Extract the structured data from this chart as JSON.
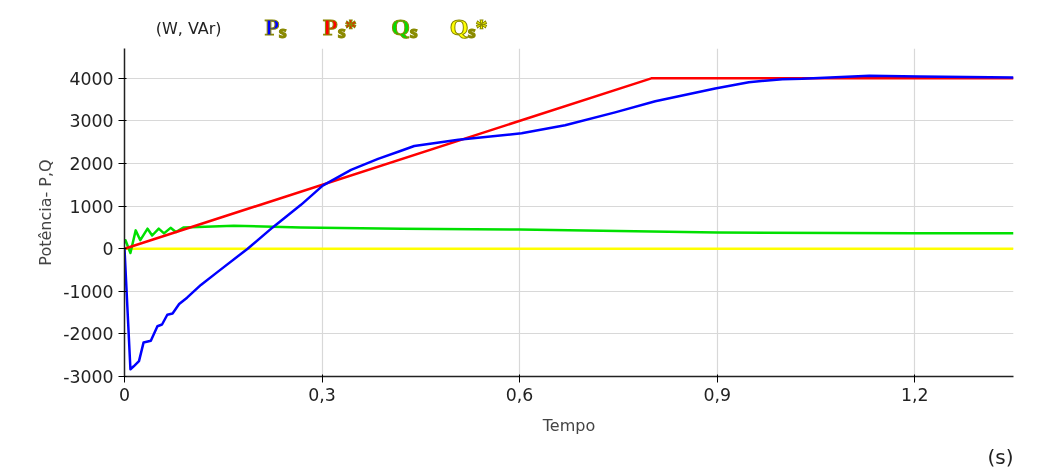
{
  "chart_data": {
    "type": "line",
    "xlabel": "Tempo",
    "ylabel": "Potência- P,Q",
    "annotations": [
      "(W, VAr)",
      "(s)"
    ],
    "xlim": [
      0,
      1.35
    ],
    "ylim": [
      -3000,
      4700
    ],
    "xticks": [
      {
        "value": 0,
        "label": "0"
      },
      {
        "value": 0.3,
        "label": "0,3"
      },
      {
        "value": 0.6,
        "label": "0,6"
      },
      {
        "value": 0.9,
        "label": "0,9"
      },
      {
        "value": 1.2,
        "label": "1,2"
      }
    ],
    "yticks": [
      -3000,
      -2000,
      -1000,
      0,
      1000,
      2000,
      3000,
      4000
    ],
    "grid": true,
    "marker": "none",
    "line_style": "solid",
    "series": [
      {
        "name": "Pₛ",
        "color": "#0000ff",
        "x": [
          0,
          0.009,
          0.014,
          0.022,
          0.029,
          0.04,
          0.05,
          0.057,
          0.065,
          0.073,
          0.083,
          0.095,
          0.116,
          0.141,
          0.187,
          0.225,
          0.268,
          0.301,
          0.344,
          0.385,
          0.42,
          0.44,
          0.507,
          0.603,
          0.669,
          0.745,
          0.806,
          0.897,
          0.948,
          0.999,
          1.029,
          1.131,
          1.207,
          1.35
        ],
        "values": [
          0,
          -2830,
          -2760,
          -2640,
          -2200,
          -2160,
          -1820,
          -1780,
          -1550,
          -1520,
          -1300,
          -1150,
          -850,
          -550,
          0,
          500,
          1030,
          1480,
          1850,
          2110,
          2300,
          2410,
          2560,
          2710,
          2900,
          3200,
          3460,
          3760,
          3910,
          3980,
          3990,
          4060,
          4040,
          4020
        ]
      },
      {
        "name": "Pₛ*",
        "color": "#ff0000",
        "x": [
          0,
          0.8,
          1.35
        ],
        "values": [
          0,
          4000,
          4000
        ]
      },
      {
        "name": "Qₛ",
        "color": "#00e000",
        "x": [
          0,
          0.0015,
          0.009,
          0.017,
          0.024,
          0.035,
          0.042,
          0.052,
          0.06,
          0.07,
          0.078,
          0.09,
          0.166,
          0.268,
          0.42,
          0.6,
          0.9,
          1.2,
          1.35
        ],
        "values": [
          130,
          200,
          -100,
          430,
          200,
          470,
          310,
          470,
          360,
          490,
          390,
          500,
          540,
          500,
          470,
          450,
          380,
          360,
          360
        ]
      },
      {
        "name": "Qₛ*",
        "color": "#ffff00",
        "x": [
          0,
          1.35
        ],
        "values": [
          0,
          0
        ]
      }
    ]
  }
}
